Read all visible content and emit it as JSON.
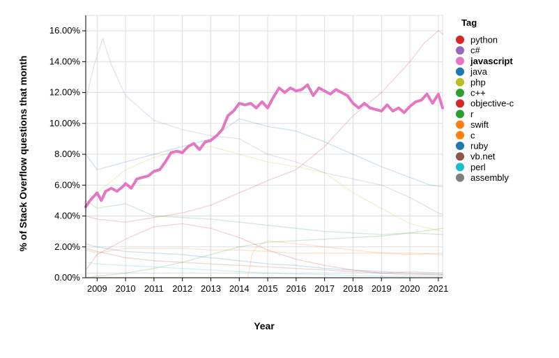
{
  "chart_data": {
    "type": "line",
    "xlabel": "Year",
    "ylabel": "% of Stack Overflow questions that month",
    "legend_title": "Tag",
    "legend_position": "right",
    "grid": true,
    "xlim": [
      2008.6,
      2021.15
    ],
    "ylim": [
      0,
      17
    ],
    "x_ticks": [
      "2009",
      "2010",
      "2011",
      "2012",
      "2013",
      "2014",
      "2015",
      "2016",
      "2017",
      "2018",
      "2019",
      "2020",
      "2021"
    ],
    "y_ticks": [
      "0.00%",
      "2.00%",
      "4.00%",
      "6.00%",
      "8.00%",
      "10.00%",
      "12.00%",
      "14.00%",
      "16.00%"
    ],
    "highlighted_series": "javascript",
    "series": [
      {
        "name": "python",
        "color": "#d62728",
        "x": [
          2008.6,
          2009,
          2010,
          2011,
          2012,
          2013,
          2014,
          2015,
          2016,
          2017,
          2018,
          2019,
          2019.5,
          2020,
          2020.5,
          2021,
          2021.15
        ],
        "values": [
          4.0,
          3.8,
          3.6,
          3.9,
          4.2,
          4.7,
          5.5,
          6.3,
          7.0,
          8.5,
          10.5,
          12.0,
          13.0,
          14.0,
          15.2,
          16.0,
          15.8
        ]
      },
      {
        "name": "c#",
        "color": "#9467bd",
        "x": [
          2008.6,
          2008.9,
          2009.2,
          2009.5,
          2010,
          2011,
          2012,
          2013,
          2014,
          2015,
          2016,
          2017,
          2018,
          2019,
          2020,
          2021,
          2021.15
        ],
        "values": [
          11.5,
          13.8,
          15.5,
          13.8,
          11.8,
          10.2,
          9.6,
          9.2,
          9.0,
          8.0,
          7.5,
          6.8,
          6.4,
          6.0,
          5.2,
          4.2,
          4.1
        ]
      },
      {
        "name": "javascript",
        "color": "#e377c2",
        "x": [
          2008.6,
          2008.75,
          2008.9,
          2009.0,
          2009.15,
          2009.3,
          2009.5,
          2009.7,
          2009.9,
          2010.0,
          2010.2,
          2010.4,
          2010.6,
          2010.8,
          2011.0,
          2011.2,
          2011.4,
          2011.6,
          2011.8,
          2012.0,
          2012.2,
          2012.4,
          2012.6,
          2012.8,
          2013.0,
          2013.2,
          2013.4,
          2013.6,
          2013.8,
          2014.0,
          2014.2,
          2014.4,
          2014.6,
          2014.8,
          2015.0,
          2015.2,
          2015.4,
          2015.6,
          2015.8,
          2016.0,
          2016.2,
          2016.4,
          2016.6,
          2016.8,
          2017.0,
          2017.2,
          2017.4,
          2017.6,
          2017.8,
          2018.0,
          2018.2,
          2018.4,
          2018.6,
          2018.8,
          2019.0,
          2019.2,
          2019.4,
          2019.6,
          2019.8,
          2020.0,
          2020.2,
          2020.4,
          2020.6,
          2020.8,
          2021.0,
          2021.15
        ],
        "values": [
          4.6,
          5.0,
          5.3,
          5.5,
          5.0,
          5.6,
          5.8,
          5.6,
          5.9,
          6.1,
          5.8,
          6.4,
          6.5,
          6.6,
          6.9,
          7.0,
          7.5,
          8.1,
          8.2,
          8.1,
          8.5,
          8.7,
          8.3,
          8.8,
          8.9,
          9.2,
          9.6,
          10.5,
          10.8,
          11.3,
          11.2,
          11.3,
          11.0,
          11.4,
          11.0,
          11.7,
          12.3,
          12.0,
          12.3,
          12.1,
          12.2,
          12.5,
          11.8,
          12.3,
          12.1,
          11.9,
          12.2,
          12.0,
          11.8,
          11.3,
          11.0,
          11.3,
          11.0,
          10.9,
          10.8,
          11.2,
          10.8,
          11.0,
          10.7,
          11.1,
          11.4,
          11.5,
          11.9,
          11.3,
          11.9,
          11.0
        ]
      },
      {
        "name": "java",
        "color": "#1f77b4",
        "x": [
          2008.6,
          2009,
          2010,
          2011,
          2012,
          2013,
          2014,
          2015,
          2016,
          2017,
          2018,
          2019,
          2020,
          2020.7,
          2021.15
        ],
        "values": [
          8.0,
          7.0,
          7.5,
          8.0,
          8.5,
          9.0,
          10.3,
          9.8,
          9.5,
          8.8,
          8.0,
          7.2,
          6.5,
          6.0,
          5.9
        ]
      },
      {
        "name": "php",
        "color": "#bcbd22",
        "x": [
          2008.6,
          2009,
          2010,
          2011,
          2012,
          2013,
          2014,
          2015,
          2016,
          2017,
          2018,
          2019,
          2020,
          2021.15
        ],
        "values": [
          4.5,
          5.5,
          7.0,
          7.8,
          8.3,
          8.5,
          8.0,
          7.5,
          7.2,
          6.8,
          5.5,
          4.5,
          3.5,
          3.0
        ]
      },
      {
        "name": "c++",
        "color": "#2ca02c",
        "x": [
          2008.6,
          2009,
          2010,
          2011,
          2012,
          2013,
          2014,
          2015,
          2016,
          2017,
          2018,
          2019,
          2020,
          2021.15
        ],
        "values": [
          5.0,
          4.5,
          4.8,
          4.0,
          3.9,
          3.8,
          3.6,
          3.4,
          3.2,
          3.0,
          2.9,
          2.8,
          2.9,
          3.2
        ]
      },
      {
        "name": "objective-c",
        "color": "#d62728",
        "x": [
          2008.6,
          2009,
          2010,
          2011,
          2012,
          2013,
          2014,
          2015,
          2016,
          2017,
          2018,
          2019,
          2020,
          2021.15
        ],
        "values": [
          0.5,
          1.5,
          2.5,
          3.3,
          3.5,
          3.2,
          2.6,
          1.8,
          1.2,
          0.8,
          0.5,
          0.3,
          0.2,
          0.2
        ]
      },
      {
        "name": "r",
        "color": "#2ca02c",
        "x": [
          2008.6,
          2009,
          2010,
          2011,
          2012,
          2013,
          2014,
          2015,
          2016,
          2017,
          2018,
          2019,
          2020,
          2021.15
        ],
        "values": [
          0.0,
          0.1,
          0.3,
          0.6,
          1.0,
          1.5,
          2.0,
          2.3,
          2.4,
          2.5,
          2.6,
          2.7,
          2.9,
          2.8
        ]
      },
      {
        "name": "swift",
        "color": "#ff7f0e",
        "x": [
          2008.6,
          2014.3,
          2014.45,
          2014.6,
          2015,
          2016,
          2017,
          2018,
          2019,
          2020,
          2021.15
        ],
        "values": [
          0.0,
          0.0,
          1.5,
          2.0,
          2.4,
          2.2,
          2.0,
          1.8,
          1.6,
          1.5,
          1.6
        ]
      },
      {
        "name": "c",
        "color": "#ff7f0e",
        "x": [
          2008.6,
          2009,
          2010,
          2011,
          2012,
          2013,
          2014,
          2015,
          2016,
          2017,
          2018,
          2019,
          2020,
          2021.15
        ],
        "values": [
          1.8,
          1.6,
          1.9,
          1.9,
          1.9,
          1.8,
          1.8,
          1.7,
          1.6,
          1.6,
          1.6,
          1.6,
          1.6,
          1.5
        ]
      },
      {
        "name": "ruby",
        "color": "#1f77b4",
        "x": [
          2008.6,
          2009,
          2010,
          2011,
          2012,
          2013,
          2014,
          2015,
          2016,
          2017,
          2018,
          2019,
          2020,
          2021.15
        ],
        "values": [
          2.2,
          2.0,
          1.7,
          1.6,
          1.5,
          1.3,
          1.1,
          0.9,
          0.8,
          0.6,
          0.5,
          0.4,
          0.3,
          0.3
        ]
      },
      {
        "name": "vb.net",
        "color": "#8c564b",
        "x": [
          2008.6,
          2009,
          2010,
          2011,
          2012,
          2013,
          2014,
          2015,
          2016,
          2017,
          2018,
          2019,
          2020,
          2021.15
        ],
        "values": [
          1.9,
          1.7,
          1.3,
          1.1,
          1.0,
          0.9,
          0.8,
          0.7,
          0.6,
          0.5,
          0.4,
          0.3,
          0.3,
          0.2
        ]
      },
      {
        "name": "perl",
        "color": "#17becf",
        "x": [
          2008.6,
          2009,
          2010,
          2011,
          2012,
          2013,
          2014,
          2015,
          2016,
          2017,
          2018,
          2019,
          2020,
          2021.15
        ],
        "values": [
          1.0,
          0.9,
          0.8,
          0.7,
          0.6,
          0.5,
          0.4,
          0.3,
          0.25,
          0.2,
          0.15,
          0.1,
          0.1,
          0.1
        ]
      },
      {
        "name": "assembly",
        "color": "#7f7f7f",
        "x": [
          2008.6,
          2009,
          2010,
          2011,
          2012,
          2013,
          2014,
          2015,
          2016,
          2017,
          2018,
          2019,
          2020,
          2021.15
        ],
        "values": [
          0.3,
          0.3,
          0.3,
          0.3,
          0.3,
          0.3,
          0.3,
          0.3,
          0.3,
          0.3,
          0.3,
          0.3,
          0.4,
          0.3
        ]
      }
    ]
  }
}
